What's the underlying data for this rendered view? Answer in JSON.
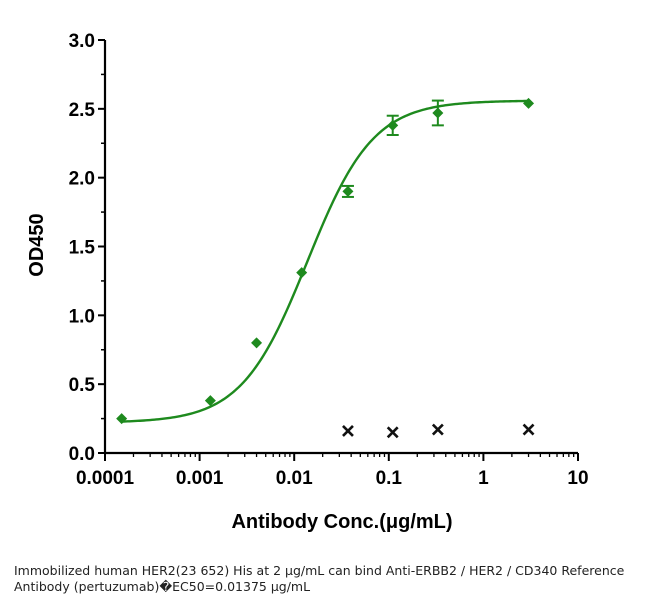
{
  "chart_data": {
    "type": "scatter",
    "xlabel": "Antibody Conc.(μg/mL)",
    "ylabel": "OD450",
    "xscale": "log",
    "xlim": [
      0.0001,
      10
    ],
    "ylim": [
      0,
      3.0
    ],
    "x_ticks": [
      0.0001,
      0.001,
      0.01,
      0.1,
      1,
      10
    ],
    "x_tick_labels": [
      "0.0001",
      "0.001",
      "0.01",
      "0.1",
      "1",
      "10"
    ],
    "y_ticks": [
      0,
      0.5,
      1.0,
      1.5,
      2.0,
      2.5,
      3.0
    ],
    "y_tick_labels": [
      "0.0",
      "0.5",
      "1.0",
      "1.5",
      "2.0",
      "2.5",
      "3.0"
    ],
    "grid": false,
    "legend": "none",
    "series": [
      {
        "marker": "diamond",
        "color": "#1e8a1e",
        "points": [
          {
            "x": 0.00015,
            "y": 0.25,
            "err": 0
          },
          {
            "x": 0.0013,
            "y": 0.38,
            "err": 0
          },
          {
            "x": 0.004,
            "y": 0.8,
            "err": 0
          },
          {
            "x": 0.012,
            "y": 1.31,
            "err": 0
          },
          {
            "x": 0.037,
            "y": 1.9,
            "err": 0.04
          },
          {
            "x": 0.11,
            "y": 2.38,
            "err": 0.07
          },
          {
            "x": 0.33,
            "y": 2.47,
            "err": 0.09
          },
          {
            "x": 3.0,
            "y": 2.54,
            "err": 0
          }
        ],
        "fit": {
          "model": "4PL",
          "bottom": 0.22,
          "top": 2.56,
          "ec50": 0.01375,
          "hill": 1.25
        }
      },
      {
        "marker": "x",
        "color": "#111111",
        "points": [
          {
            "x": 0.037,
            "y": 0.16
          },
          {
            "x": 0.11,
            "y": 0.15
          },
          {
            "x": 0.33,
            "y": 0.17
          },
          {
            "x": 3.0,
            "y": 0.17
          }
        ]
      }
    ]
  },
  "caption": {
    "line1": "Immobilized human HER2(23 652) His at 2 μg/mL can bind  Anti-ERBB2 / HER2 / CD340 Reference",
    "line2": "Antibody (pertuzumab)�EC50=0.01375 μg/mL"
  }
}
